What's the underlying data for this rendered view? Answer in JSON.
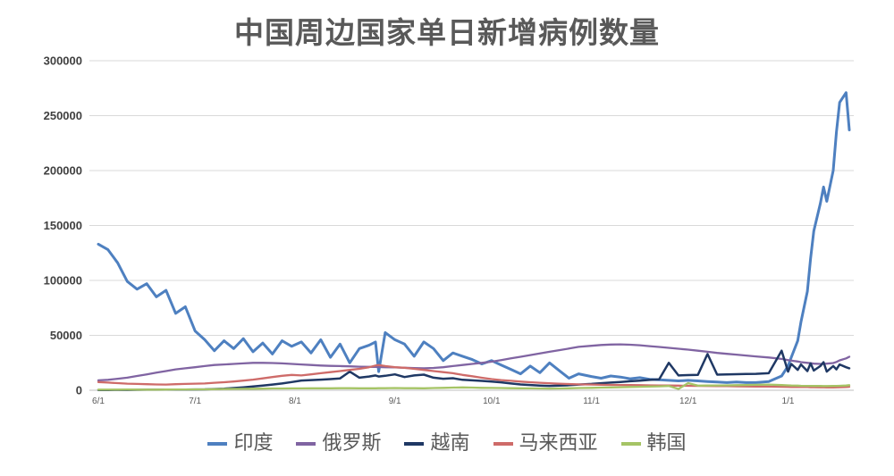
{
  "chart_data": {
    "type": "line",
    "title": "中国周边国家单日新增病例数量",
    "x_axis": "date (month/day), daily values from 6/1 to late January",
    "x_tick_labels": [
      "6/1",
      "7/1",
      "8/1",
      "9/1",
      "10/1",
      "11/1",
      "12/1",
      "1/1"
    ],
    "x_tick_days": [
      0,
      30,
      61,
      92,
      122,
      153,
      183,
      214
    ],
    "total_days": 233,
    "ylim": [
      0,
      300000
    ],
    "y_ticks": [
      0,
      50000,
      100000,
      150000,
      200000,
      250000,
      300000
    ],
    "grid": true,
    "legend_position": "bottom",
    "days": [
      0,
      3,
      6,
      9,
      12,
      15,
      18,
      21,
      24,
      27,
      30,
      33,
      36,
      39,
      42,
      45,
      48,
      51,
      54,
      57,
      60,
      63,
      66,
      69,
      72,
      75,
      78,
      81,
      84,
      86,
      87,
      89,
      92,
      95,
      98,
      101,
      104,
      107,
      110,
      113,
      116,
      119,
      122,
      125,
      128,
      131,
      134,
      137,
      140,
      143,
      146,
      149,
      153,
      156,
      159,
      162,
      165,
      168,
      171,
      174,
      177,
      180,
      183,
      186,
      189,
      192,
      195,
      198,
      201,
      204,
      208,
      212,
      214,
      215,
      217,
      218,
      220,
      221,
      222,
      224,
      225,
      226,
      228,
      229,
      230,
      232,
      233
    ],
    "series": [
      {
        "name": "印度",
        "color": "#4E80C0",
        "width": 3,
        "values": [
          133000,
          128000,
          116000,
          99000,
          92000,
          97000,
          85000,
          91000,
          70000,
          76000,
          54000,
          46000,
          36000,
          45000,
          38000,
          47000,
          35000,
          43000,
          33000,
          45000,
          40000,
          44000,
          34000,
          46000,
          30000,
          42000,
          25000,
          38000,
          41000,
          44000,
          17000,
          52500,
          46000,
          42000,
          31000,
          44000,
          38000,
          27000,
          34000,
          31000,
          28000,
          24000,
          27000,
          23000,
          19000,
          15000,
          22000,
          16000,
          25000,
          18000,
          11000,
          15000,
          12500,
          11000,
          13000,
          12000,
          10500,
          11500,
          10000,
          9500,
          9000,
          8500,
          9000,
          8500,
          8000,
          7500,
          7000,
          7500,
          7000,
          7000,
          8000,
          13000,
          22000,
          30000,
          45000,
          62000,
          90000,
          120000,
          145000,
          170000,
          185000,
          172000,
          200000,
          235000,
          262000,
          271000,
          237000
        ]
      },
      {
        "name": "俄罗斯",
        "color": "#8064A2",
        "width": 2.3,
        "values": [
          9000,
          9500,
          10500,
          11500,
          13000,
          14500,
          16000,
          17500,
          19000,
          20000,
          21000,
          22000,
          23000,
          23500,
          24000,
          24500,
          25000,
          25000,
          24800,
          24500,
          24000,
          23500,
          23000,
          22500,
          22200,
          22000,
          21800,
          21500,
          21300,
          21200,
          21100,
          21000,
          20800,
          20500,
          20200,
          20000,
          20300,
          21000,
          22000,
          23000,
          24000,
          25000,
          26000,
          27500,
          29000,
          30500,
          32000,
          33500,
          35000,
          36500,
          38000,
          39500,
          40500,
          41200,
          41600,
          41800,
          41500,
          41000,
          40200,
          39400,
          38600,
          37800,
          37000,
          36000,
          35000,
          34000,
          33200,
          32400,
          31600,
          30800,
          29800,
          28500,
          27500,
          27000,
          26200,
          25600,
          25000,
          24600,
          24200,
          24000,
          24000,
          24200,
          24800,
          25800,
          27200,
          29000,
          30500
        ]
      },
      {
        "name": "越南",
        "color": "#1F3864",
        "width": 2.5,
        "values": [
          200,
          250,
          300,
          350,
          400,
          450,
          500,
          550,
          600,
          650,
          700,
          800,
          1100,
          1500,
          2000,
          2700,
          3500,
          4300,
          5200,
          6200,
          7500,
          8900,
          9300,
          9700,
          10200,
          10800,
          17000,
          11500,
          12500,
          13500,
          12500,
          13200,
          14500,
          12000,
          13500,
          14200,
          11500,
          10500,
          11000,
          9500,
          9000,
          8500,
          8000,
          7200,
          6200,
          5300,
          4800,
          4300,
          4000,
          4200,
          4600,
          5200,
          5800,
          6400,
          7000,
          7600,
          8200,
          8800,
          9400,
          10000,
          25000,
          13500,
          13800,
          14000,
          33000,
          14200,
          14400,
          14600,
          14800,
          15000,
          15500,
          36000,
          17000,
          24000,
          18500,
          23500,
          17500,
          24500,
          18000,
          22000,
          25500,
          17000,
          22000,
          19000,
          23500,
          21000,
          20000
        ]
      },
      {
        "name": "马来西亚",
        "color": "#CE6B69",
        "width": 2.3,
        "values": [
          7500,
          7000,
          6500,
          6000,
          5800,
          5500,
          5300,
          5200,
          5500,
          5800,
          6000,
          6200,
          6800,
          7300,
          8000,
          8800,
          9700,
          10800,
          12000,
          13200,
          14000,
          13500,
          14500,
          15500,
          16500,
          17500,
          18500,
          19500,
          21000,
          22500,
          23000,
          22000,
          21000,
          20500,
          19500,
          18500,
          17500,
          16500,
          15500,
          14000,
          12800,
          11400,
          10200,
          9300,
          8600,
          7900,
          7300,
          6800,
          6400,
          6000,
          5700,
          5400,
          5200,
          5000,
          4900,
          4800,
          4700,
          4600,
          4500,
          4400,
          4300,
          4200,
          4100,
          4000,
          3900,
          3800,
          3700,
          3600,
          3500,
          3400,
          3300,
          3200,
          3100,
          3000,
          3000,
          2900,
          2900,
          2800,
          2800,
          2700,
          2700,
          2600,
          2600,
          2700,
          2800,
          3000,
          3200
        ]
      },
      {
        "name": "韩国",
        "color": "#A5C465",
        "width": 2.3,
        "values": [
          600,
          550,
          600,
          650,
          600,
          550,
          600,
          650,
          700,
          750,
          800,
          850,
          1000,
          1100,
          1200,
          1300,
          1400,
          1500,
          1600,
          1650,
          1700,
          1700,
          1750,
          1800,
          1800,
          1850,
          1900,
          1800,
          1750,
          1800,
          1850,
          1900,
          2000,
          1900,
          1850,
          1800,
          2000,
          2200,
          2400,
          2600,
          2400,
          2200,
          2100,
          2000,
          1900,
          1800,
          1700,
          1600,
          1550,
          1600,
          1800,
          2000,
          2200,
          2400,
          2600,
          2800,
          3000,
          3200,
          3400,
          3600,
          3900,
          1200,
          6500,
          4200,
          4300,
          4400,
          4500,
          4600,
          4800,
          5000,
          5200,
          4700,
          4500,
          4300,
          4200,
          4100,
          4000,
          4000,
          3900,
          3900,
          3800,
          3800,
          3900,
          4000,
          4100,
          4300,
          4600
        ]
      }
    ]
  },
  "colors": {
    "title": "#595959",
    "y_label": "#404040",
    "x_label": "#595959",
    "grid": "#D9D9D9",
    "axis_line": "#BFBFBF",
    "background": "#FFFFFF"
  }
}
